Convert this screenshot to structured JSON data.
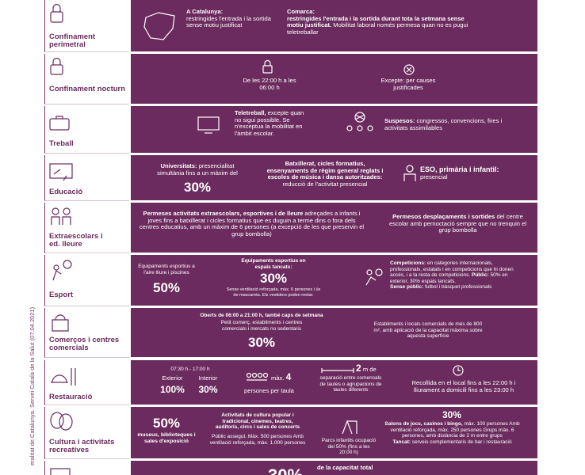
{
  "source": "eralitat de Catalunya. Servei Català de la Salut (07.04.2021)",
  "rows": [
    {
      "label": "Confinament perimetral",
      "blocks": [
        "A Catalunya:",
        "restringides l'entrada i la sortida sense motiu justificat",
        "Comarca:",
        "restringides l'entrada i la sortida durant tota la setmana sense motiu justificat.",
        "Mobilitat laboral només permesa quan no es pugui teletreballar"
      ]
    },
    {
      "label": "Confinament nocturn",
      "blocks": [
        "De les 22:00 h a les 06:00 h",
        "Excepte: per causes justificades"
      ]
    },
    {
      "label": "Treball",
      "blocks": [
        "Teletreball,",
        "excepte quan no sigui possible. Se n'exceptua la mobilitat en l'àmbit escolar.",
        "Suspesos:",
        "congressos, convencions, fires i activitats assimilables"
      ]
    },
    {
      "label": "Educació",
      "blocks": [
        "Universitats:",
        "presencialitat simultània fins a un màxim del",
        "30%",
        "Batxillerat, cicles formatius, ensenyaments de règim general reglats i escoles de música i dansa autoritzades:",
        "reducció de l'activitat presencial",
        "ESO, primària i infantil:",
        "presencial"
      ]
    },
    {
      "label": "Extraescolars i ed. lleure",
      "blocks": [
        "Permeses activitats extraescolars, esportives i de lleure",
        "adreçades a infants i joves fins a batxillerat i cicles formatius que es duguin a terme dins o fora dels centres educatius, amb un màxim de 6 persones (a excepció de les que preservin el grup bombolla)",
        "Permesos desplaçaments i sortides",
        "del centre escolar amb pernoctació sempre que no trenquin el grup bombolla"
      ]
    },
    {
      "label": "Esport",
      "blocks": [
        "Equipaments esportius a l'aire lliure i piscines",
        "50%",
        "Equipaments esportius en espais tancats:",
        "30%",
        "Sense ventilació reforçada, màx. 6 persones i ús de mascareta. Els vestidors poden restar.",
        "Competicions:",
        "en categories internacionals, professionals, estatals i en competicions que hi donen accés, i a la resta de competicions.",
        "Públic:",
        "50% en exterior, 30% espais tancats.",
        "Sense públic:",
        "futbol i bàsquet professionals"
      ]
    },
    {
      "label": "Comerços i centres comercials",
      "blocks": [
        "Oberts de 06:00 a 21:00 h, també caps de setmana",
        "Petit comerç, establiments i centres comercials i mercats no sedentaris",
        "30%",
        "Establiments i locals comercials de més de 800 m², amb aplicació de la capacitat màxima sobre aquesta superfície"
      ]
    },
    {
      "label": "Restauració",
      "blocks": [
        "07:30 h - 17:00 h",
        "Exterior",
        "Interior",
        "100%",
        "30%",
        "màx.",
        "4",
        "persones per taula",
        "2",
        "m de",
        "separació entre comensals de taules o agrupacions de taules diferents",
        "Recollida en el local fins a les 22:00 h i lliurament a domicili fins a les 23:00 h"
      ]
    },
    {
      "label": "Cultura i activitats recreatives",
      "blocks": [
        "50%",
        "museus, biblioteques i sales d'exposició",
        "Activitats de cultura popular i tradicional, cinemes, teatres, auditoris, circs i sales de concerts",
        "Públic assegut. Màx. 500 persones Amb ventilació reforçada, màx. 1.000 persones",
        "Parcs infantils ocupació del 50% (fins a les 20:00 h)",
        "30%",
        "Salons de jocs, casinos i bingo,",
        "màx. 100 persones Amb ventilació reforçada, màx. 250 persones Grups màx. 6 persones, amb distància de 2 m entre grups",
        "Tancat:",
        "serveis complementaris de bar i restauració"
      ]
    },
    {
      "blocks": [
        "30%",
        "de la capacitat total"
      ]
    }
  ]
}
